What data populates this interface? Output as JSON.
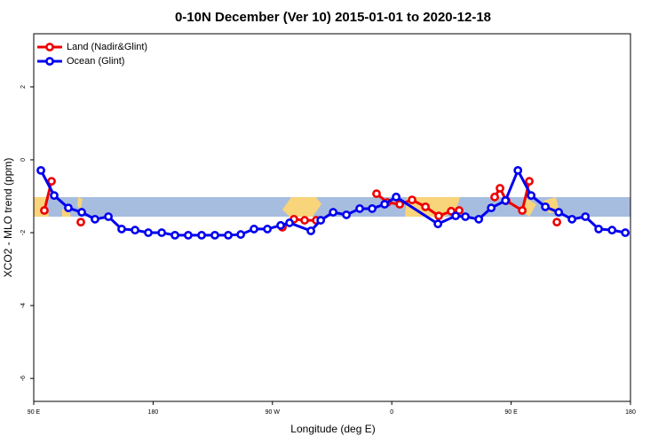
{
  "chart_data": {
    "type": "line",
    "title": "0-10N December (Ver 10)   2015-01-01 to 2020-12-18",
    "x_label": "Longitude (deg E)",
    "y_label": "XCO2 - MLO trend (ppm)",
    "xlim": [
      90,
      540
    ],
    "ylim": [
      -6.63,
      3.46
    ],
    "xticks": [
      {
        "value": 90,
        "label": "90 E"
      },
      {
        "value": 180,
        "label": "180"
      },
      {
        "value": 270,
        "label": "90 W"
      },
      {
        "value": 360,
        "label": "0"
      },
      {
        "value": 450,
        "label": "90 E"
      },
      {
        "value": 540,
        "label": "180"
      }
    ],
    "yticks": [
      2,
      0,
      -2,
      -4,
      -6
    ],
    "legend": "top-left",
    "series": [
      {
        "name": "Land (Nadir&Glint)",
        "color": "#ee0000",
        "x": [
          98,
          103.4,
          null,
          125.5,
          null,
          277.5,
          286.2,
          294.3,
          303,
          null,
          348.5,
          356.6,
          366,
          375.3,
          385.4,
          395.4,
          404.8,
          410.8,
          null,
          437.6,
          441.6,
          446.3,
          458.4,
          463.7,
          null,
          484.5
        ],
        "values": [
          -1.39,
          -0.59,
          null,
          -1.71,
          null,
          -1.85,
          -1.63,
          -1.66,
          -1.66,
          null,
          -0.93,
          -1.17,
          -1.22,
          -1.1,
          -1.29,
          -1.54,
          -1.41,
          -1.39,
          null,
          -1.02,
          -0.78,
          -1.12,
          -1.39,
          -0.59,
          null,
          -1.71
        ]
      },
      {
        "name": "Ocean (Glint)",
        "color": "#0000ee",
        "x": [
          95.4,
          105.4,
          116.1,
          126.2,
          136.2,
          146.3,
          156.3,
          166.4,
          176.4,
          186.5,
          196.5,
          206.5,
          216.6,
          226.6,
          236.7,
          246.1,
          256.1,
          266.2,
          276.2,
          282.9,
          299,
          306.4,
          315.8,
          325.8,
          335.8,
          345.2,
          354.6,
          363.3,
          394.8,
          408.2,
          415.5,
          425.6,
          435,
          445.7,
          455.1,
          465.1,
          475.8,
          485.9,
          495.9,
          506,
          516,
          526.1,
          536.1
        ],
        "values": [
          -0.29,
          -0.98,
          -1.32,
          -1.44,
          -1.63,
          -1.56,
          -1.9,
          -1.93,
          -2.0,
          -2.0,
          -2.07,
          -2.07,
          -2.07,
          -2.07,
          -2.07,
          -2.05,
          -1.9,
          -1.9,
          -1.8,
          -1.73,
          -1.95,
          -1.66,
          -1.44,
          -1.51,
          -1.34,
          -1.34,
          -1.22,
          -1.02,
          -1.76,
          -1.54,
          -1.56,
          -1.63,
          -1.32,
          -1.12,
          -0.29,
          -0.98,
          -1.29,
          -1.44,
          -1.63,
          -1.56,
          -1.9,
          -1.93,
          -2.0
        ]
      }
    ]
  }
}
